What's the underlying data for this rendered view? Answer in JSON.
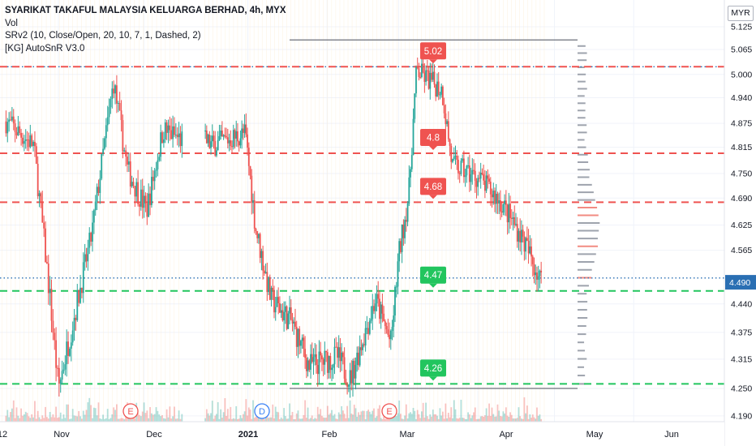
{
  "header": {
    "title": "SYARIKAT TAKAFUL MALAYSIA KELUARGA BERHAD, 4h, MYX",
    "indicators": [
      "Vol",
      "SRv2 (10, Close/Open, 20, 10, 7, 1, Dashed, 2)",
      "[KG] AutoSnR V3.0"
    ],
    "currency": "MYR"
  },
  "colors": {
    "up": "#26a69a",
    "down": "#ef5350",
    "resistance": "#ef5350",
    "support": "#22c55e",
    "last_price": "#2a6fb3",
    "grid": "#f0f3fa",
    "text": "#131722"
  },
  "chart_data": {
    "type": "candlestick",
    "title": "SYARIKAT TAKAFUL MALAYSIA KELUARGA BERHAD, 4h, MYX",
    "ylim": [
      4.17,
      5.145
    ],
    "y_ticks": [
      "5.125",
      "5.065",
      "5.000",
      "4.940",
      "4.875",
      "4.815",
      "4.750",
      "4.690",
      "4.625",
      "4.565",
      "4.440",
      "4.375",
      "4.315",
      "4.250",
      "4.190"
    ],
    "x_ticks": [
      "12",
      "Nov",
      "Dec",
      "2021",
      "Feb",
      "Mar",
      "Apr",
      "May",
      "Jun"
    ],
    "bold_x_tick": "2021",
    "last_price": "4.490",
    "resistance_levels": [
      {
        "label": "5.02",
        "value": 5.02
      },
      {
        "label": "4.8",
        "value": 4.8
      },
      {
        "label": "4.68",
        "value": 4.68
      }
    ],
    "support_levels": [
      {
        "label": "4.47",
        "value": 4.47
      },
      {
        "label": "4.26",
        "value": 4.26
      }
    ],
    "dotted_levels": [
      5.02,
      4.5
    ],
    "range_lines": [
      5.09,
      4.25
    ],
    "event_markers": [
      "E",
      "D",
      "E"
    ],
    "price_path_approx": [
      {
        "x": "Oct 12",
        "y": 4.88
      },
      {
        "x": "Oct 22",
        "y": 4.82
      },
      {
        "x": "Oct 28",
        "y": 4.45
      },
      {
        "x": "Oct 31",
        "y": 4.25
      },
      {
        "x": "Nov 6",
        "y": 4.42
      },
      {
        "x": "Nov 12",
        "y": 4.6
      },
      {
        "x": "Nov 20",
        "y": 4.98
      },
      {
        "x": "Nov 25",
        "y": 4.76
      },
      {
        "x": "Dec 2",
        "y": 4.66
      },
      {
        "x": "Dec 8",
        "y": 4.86
      },
      {
        "x": "Dec 18",
        "y": 4.82
      },
      {
        "x": "Dec 31",
        "y": 4.85
      },
      {
        "x": "Jan 4",
        "y": 4.62
      },
      {
        "x": "Jan 10",
        "y": 4.45
      },
      {
        "x": "Jan 18",
        "y": 4.4
      },
      {
        "x": "Jan 25",
        "y": 4.3
      },
      {
        "x": "Feb 5",
        "y": 4.32
      },
      {
        "x": "Feb 10",
        "y": 4.27
      },
      {
        "x": "Feb 20",
        "y": 4.45
      },
      {
        "x": "Feb 26",
        "y": 4.35
      },
      {
        "x": "Mar 1",
        "y": 4.55
      },
      {
        "x": "Mar 5",
        "y": 4.7
      },
      {
        "x": "Mar 8",
        "y": 5.01
      },
      {
        "x": "Mar 18",
        "y": 4.96
      },
      {
        "x": "Mar 22",
        "y": 4.77
      },
      {
        "x": "Apr 1",
        "y": 4.74
      },
      {
        "x": "Apr 10",
        "y": 4.68
      },
      {
        "x": "Apr 18",
        "y": 4.6
      },
      {
        "x": "Apr 26",
        "y": 4.49
      }
    ]
  }
}
